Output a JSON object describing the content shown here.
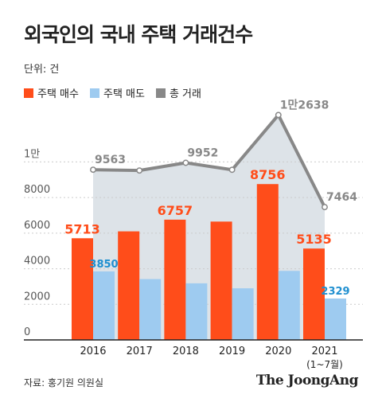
{
  "title": "외국인의 국내 주택 거래건수",
  "unit_label": "단위: 건",
  "source": "자료: 홍기원 의원실",
  "logo_text": "The JoongAng",
  "colors": {
    "buy": "#ff4d1a",
    "sell": "#9ecbf0",
    "total": "#888888",
    "area": "#dde3e8",
    "axis": "#222222",
    "grid": "#cccccc"
  },
  "chart_data": {
    "type": "bar",
    "categories": [
      "2016",
      "2017",
      "2018",
      "2019",
      "2020",
      "2021"
    ],
    "category_sublabels": [
      "",
      "",
      "",
      "",
      "",
      "(1~7월)"
    ],
    "series": [
      {
        "name": "주택 매수",
        "kind": "bar",
        "values": [
          5713,
          6100,
          6757,
          6650,
          8756,
          5135
        ],
        "labels": [
          "5713",
          "",
          "6757",
          "",
          "8756",
          "5135"
        ]
      },
      {
        "name": "주택 매도",
        "kind": "bar",
        "values": [
          3850,
          3420,
          3180,
          2900,
          3880,
          2329
        ],
        "labels": [
          "3850",
          "",
          "",
          "",
          "",
          "2329"
        ]
      },
      {
        "name": "총 거래",
        "kind": "line",
        "values": [
          9563,
          9520,
          9952,
          9560,
          12638,
          7464
        ],
        "labels": [
          "9563",
          "",
          "9952",
          "",
          "1만2638",
          "7464"
        ]
      }
    ],
    "y_ticks": [
      {
        "value": 0,
        "label": "0"
      },
      {
        "value": 2000,
        "label": "2000"
      },
      {
        "value": 4000,
        "label": "4000"
      },
      {
        "value": 6000,
        "label": "6000"
      },
      {
        "value": 8000,
        "label": "8000"
      },
      {
        "value": 10000,
        "label": "1만"
      }
    ],
    "ylim": [
      0,
      14000
    ],
    "grid": true,
    "legend_position": "top-left"
  }
}
